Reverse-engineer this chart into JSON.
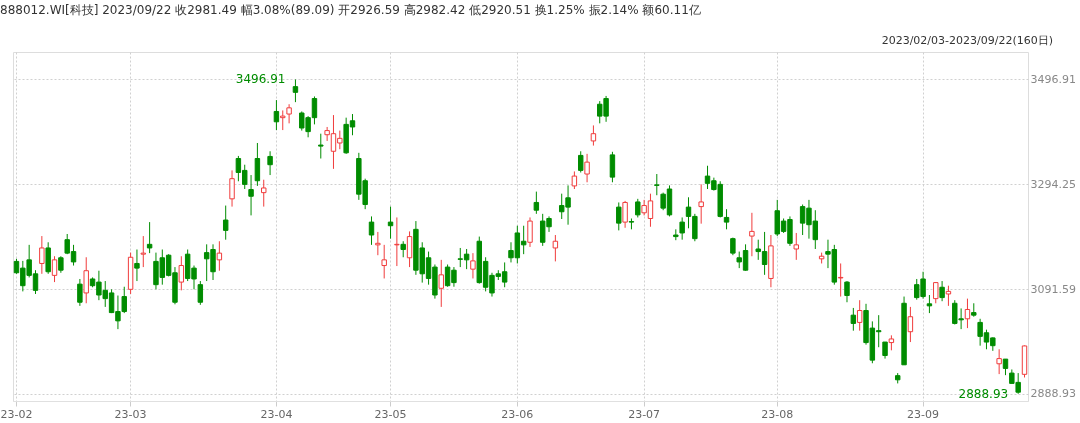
{
  "chart_data": {
    "type": "candlestick",
    "title": "888012.WI[科技]   2023/09/22   收2981.49   幅3.08%(89.09)   开2926.59   高2982.42   低2920.51   换1.25%   振2.14%   额60.11亿",
    "subtitle": "2023/02/03-2023/09/22(160日)",
    "categories": [
      "23-02",
      null,
      null,
      null,
      null,
      null,
      null,
      null,
      null,
      null,
      null,
      null,
      null,
      null,
      null,
      null,
      null,
      null,
      "23-03",
      null,
      null,
      null,
      null,
      null,
      null,
      null,
      null,
      null,
      null,
      null,
      null,
      null,
      null,
      null,
      null,
      null,
      null,
      null,
      null,
      null,
      null,
      "23-04",
      null,
      null,
      null,
      null,
      null,
      null,
      null,
      null,
      null,
      null,
      null,
      null,
      null,
      null,
      null,
      null,
      null,
      "23-05",
      null,
      null,
      null,
      null,
      null,
      null,
      null,
      null,
      null,
      null,
      null,
      null,
      null,
      null,
      null,
      null,
      null,
      null,
      null,
      "23-06",
      null,
      null,
      null,
      null,
      null,
      null,
      null,
      null,
      null,
      null,
      null,
      null,
      null,
      null,
      null,
      null,
      null,
      null,
      null,
      "23-07",
      null,
      null,
      null,
      null,
      null,
      null,
      null,
      null,
      null,
      null,
      null,
      null,
      null,
      null,
      null,
      null,
      null,
      null,
      null,
      null,
      "23-08",
      null,
      null,
      null,
      null,
      null,
      null,
      null,
      null,
      null,
      null,
      null,
      null,
      null,
      null,
      null,
      null,
      null,
      null,
      null,
      null,
      null,
      null,
      "23-09",
      null,
      null,
      null,
      null,
      null,
      null,
      null,
      null,
      null,
      null,
      null,
      null,
      null,
      null,
      null,
      null
    ],
    "ohlc": [
      [
        3145,
        3150,
        3121,
        3123
      ],
      [
        3132,
        3146,
        3087,
        3098
      ],
      [
        3148,
        3177,
        3114,
        3118
      ],
      [
        3121,
        3128,
        3082,
        3089
      ],
      [
        3141,
        3194,
        3121,
        3171
      ],
      [
        3171,
        3182,
        3121,
        3125
      ],
      [
        3118,
        3155,
        3105,
        3148
      ],
      [
        3152,
        3155,
        3123,
        3128
      ],
      [
        3187,
        3198,
        3159,
        3161
      ],
      [
        3164,
        3177,
        3137,
        3144
      ],
      [
        3101,
        3111,
        3059,
        3066
      ],
      [
        3084,
        3153,
        3064,
        3127
      ],
      [
        3111,
        3114,
        3095,
        3098
      ],
      [
        3105,
        3127,
        3070,
        3080
      ],
      [
        3089,
        3107,
        3057,
        3073
      ],
      [
        3084,
        3091,
        3045,
        3046
      ],
      [
        3048,
        3079,
        3014,
        3030
      ],
      [
        3077,
        3096,
        3045,
        3048
      ],
      [
        3091,
        3162,
        3082,
        3153
      ],
      [
        3141,
        3168,
        3107,
        3132
      ],
      [
        3159,
        3194,
        3134,
        3161
      ],
      [
        3178,
        3221,
        3161,
        3171
      ],
      [
        3145,
        3162,
        3091,
        3100
      ],
      [
        3152,
        3168,
        3100,
        3114
      ],
      [
        3157,
        3159,
        3116,
        3118
      ],
      [
        3123,
        3134,
        3062,
        3066
      ],
      [
        3105,
        3155,
        3089,
        3137
      ],
      [
        3159,
        3168,
        3107,
        3112
      ],
      [
        3132,
        3137,
        3091,
        3111
      ],
      [
        3100,
        3107,
        3061,
        3066
      ],
      [
        3162,
        3178,
        3107,
        3150
      ],
      [
        3168,
        3178,
        3109,
        3125
      ],
      [
        3148,
        3184,
        3127,
        3161
      ],
      [
        3225,
        3253,
        3187,
        3205
      ],
      [
        3266,
        3321,
        3251,
        3305
      ],
      [
        3344,
        3349,
        3300,
        3317
      ],
      [
        3321,
        3332,
        3285,
        3294
      ],
      [
        3284,
        3312,
        3234,
        3271
      ],
      [
        3344,
        3374,
        3291,
        3301
      ],
      [
        3278,
        3303,
        3251,
        3287
      ],
      [
        3348,
        3358,
        3312,
        3332
      ],
      [
        3435,
        3457,
        3399,
        3415
      ],
      [
        3423,
        3437,
        3399,
        3426
      ],
      [
        3430,
        3449,
        3412,
        3442
      ],
      [
        3483,
        3496.91,
        3453,
        3472
      ],
      [
        3432,
        3435,
        3398,
        3403
      ],
      [
        3423,
        3426,
        3385,
        3396
      ],
      [
        3460,
        3464,
        3410,
        3423
      ],
      [
        3370,
        3392,
        3344,
        3368
      ],
      [
        3390,
        3405,
        3378,
        3398
      ],
      [
        3358,
        3428,
        3324,
        3392
      ],
      [
        3374,
        3398,
        3362,
        3383
      ],
      [
        3410,
        3423,
        3353,
        3355
      ],
      [
        3417,
        3430,
        3389,
        3405
      ],
      [
        3344,
        3355,
        3264,
        3275
      ],
      [
        3301,
        3305,
        3246,
        3255
      ],
      [
        3221,
        3232,
        3177,
        3196
      ],
      [
        3177,
        3202,
        3157,
        3180
      ],
      [
        3137,
        3177,
        3112,
        3148
      ],
      [
        3221,
        3251,
        3189,
        3214
      ],
      [
        3177,
        3230,
        3136,
        3178
      ],
      [
        3178,
        3184,
        3153,
        3168
      ],
      [
        3152,
        3203,
        3134,
        3193
      ],
      [
        3207,
        3223,
        3119,
        3128
      ],
      [
        3171,
        3182,
        3104,
        3121
      ],
      [
        3152,
        3164,
        3100,
        3112
      ],
      [
        3134,
        3139,
        3073,
        3080
      ],
      [
        3093,
        3148,
        3057,
        3119
      ],
      [
        3134,
        3139,
        3096,
        3098
      ],
      [
        3128,
        3134,
        3096,
        3104
      ],
      [
        3150,
        3171,
        3134,
        3149
      ],
      [
        3159,
        3169,
        3130,
        3148
      ],
      [
        3130,
        3161,
        3112,
        3146
      ],
      [
        3184,
        3193,
        3102,
        3104
      ],
      [
        3145,
        3153,
        3087,
        3095
      ],
      [
        3118,
        3123,
        3077,
        3084
      ],
      [
        3121,
        3128,
        3109,
        3116
      ],
      [
        3125,
        3143,
        3095,
        3105
      ],
      [
        3166,
        3182,
        3143,
        3152
      ],
      [
        3200,
        3214,
        3141,
        3152
      ],
      [
        3184,
        3214,
        3159,
        3177
      ],
      [
        3182,
        3230,
        3173,
        3223
      ],
      [
        3259,
        3280,
        3237,
        3244
      ],
      [
        3223,
        3237,
        3175,
        3182
      ],
      [
        3228,
        3232,
        3202,
        3212
      ],
      [
        3171,
        3196,
        3145,
        3184
      ],
      [
        3253,
        3276,
        3227,
        3241
      ],
      [
        3268,
        3292,
        3216,
        3250
      ],
      [
        3291,
        3319,
        3285,
        3310
      ],
      [
        3350,
        3358,
        3317,
        3321
      ],
      [
        3314,
        3353,
        3298,
        3337
      ],
      [
        3378,
        3408,
        3369,
        3392
      ],
      [
        3449,
        3455,
        3412,
        3426
      ],
      [
        3460,
        3465,
        3415,
        3426
      ],
      [
        3351,
        3357,
        3298,
        3308
      ],
      [
        3250,
        3259,
        3205,
        3219
      ],
      [
        3221,
        3262,
        3210,
        3259
      ],
      [
        3222,
        3228,
        3207,
        3221
      ],
      [
        3260,
        3266,
        3230,
        3235
      ],
      [
        3239,
        3264,
        3234,
        3253
      ],
      [
        3228,
        3276,
        3212,
        3262
      ],
      [
        3293,
        3314,
        3273,
        3292
      ],
      [
        3275,
        3278,
        3244,
        3248
      ],
      [
        3285,
        3292,
        3232,
        3235
      ],
      [
        3196,
        3207,
        3186,
        3193
      ],
      [
        3221,
        3230,
        3187,
        3200
      ],
      [
        3250,
        3269,
        3209,
        3232
      ],
      [
        3232,
        3237,
        3184,
        3189
      ],
      [
        3251,
        3294,
        3218,
        3260
      ],
      [
        3310,
        3330,
        3285,
        3296
      ],
      [
        3301,
        3307,
        3282,
        3284
      ],
      [
        3294,
        3300,
        3230,
        3232
      ],
      [
        3230,
        3246,
        3207,
        3221
      ],
      [
        3189,
        3191,
        3157,
        3161
      ],
      [
        3152,
        3164,
        3132,
        3144
      ],
      [
        3166,
        3178,
        3127,
        3128
      ],
      [
        3194,
        3239,
        3155,
        3203
      ],
      [
        3169,
        3187,
        3148,
        3164
      ],
      [
        3164,
        3202,
        3119,
        3139
      ],
      [
        3112,
        3196,
        3095,
        3175
      ],
      [
        3243,
        3264,
        3194,
        3198
      ],
      [
        3223,
        3228,
        3200,
        3203
      ],
      [
        3226,
        3232,
        3175,
        3180
      ],
      [
        3169,
        3200,
        3148,
        3177
      ],
      [
        3251,
        3255,
        3196,
        3219
      ],
      [
        3248,
        3264,
        3189,
        3216
      ],
      [
        3223,
        3244,
        3169,
        3187
      ],
      [
        3150,
        3162,
        3141,
        3155
      ],
      [
        3164,
        3187,
        3132,
        3159
      ],
      [
        3168,
        3177,
        3100,
        3105
      ],
      [
        3113,
        3141,
        3077,
        3114
      ],
      [
        3105,
        3107,
        3066,
        3079
      ],
      [
        3041,
        3055,
        3011,
        3025
      ],
      [
        3027,
        3070,
        3011,
        3050
      ],
      [
        3050,
        3063,
        2984,
        2988
      ],
      [
        3016,
        3029,
        2948,
        2954
      ],
      [
        3011,
        3041,
        2979,
        3009
      ],
      [
        2989,
        2989,
        2957,
        2963
      ],
      [
        2988,
        3002,
        2973,
        2995
      ],
      [
        2924,
        2929,
        2909,
        2916
      ],
      [
        3064,
        3077,
        2945,
        2945
      ],
      [
        3009,
        3057,
        2989,
        3038
      ],
      [
        3100,
        3111,
        3071,
        3075
      ],
      [
        3111,
        3125,
        3073,
        3077
      ],
      [
        3063,
        3080,
        3045,
        3059
      ],
      [
        3073,
        3105,
        3064,
        3104
      ],
      [
        3095,
        3107,
        3068,
        3075
      ],
      [
        3082,
        3098,
        3059,
        3087
      ],
      [
        3064,
        3070,
        3023,
        3025
      ],
      [
        3034,
        3054,
        3014,
        3032
      ],
      [
        3034,
        3073,
        3016,
        3052
      ],
      [
        3046,
        3064,
        3038,
        3041
      ],
      [
        3027,
        3034,
        2982,
        3000
      ],
      [
        3007,
        3013,
        2975,
        2989
      ],
      [
        2997,
        2998,
        2972,
        2982
      ],
      [
        2947,
        2975,
        2927,
        2957
      ],
      [
        2956,
        2956,
        2925,
        2938
      ],
      [
        2929,
        2936,
        2909,
        2909
      ],
      [
        2911,
        2929,
        2888.93,
        2892
      ],
      [
        2926.59,
        2982.42,
        2920.51,
        2981.49
      ]
    ],
    "colors": [
      "#008c00",
      "#008c00",
      "#008c00",
      "#008c00",
      "#f03c3c",
      "#008c00",
      "#f03c3c",
      "#008c00",
      "#008c00",
      "#008c00",
      "#008c00",
      "#f03c3c",
      "#008c00",
      "#008c00",
      "#008c00",
      "#008c00",
      "#008c00",
      "#008c00",
      "#f03c3c",
      "#008c00",
      "#f03c3c",
      "#008c00",
      "#008c00",
      "#008c00",
      "#008c00",
      "#008c00",
      "#f03c3c",
      "#008c00",
      "#008c00",
      "#008c00",
      "#008c00",
      "#008c00",
      "#f03c3c",
      "#008c00",
      "#f03c3c",
      "#008c00",
      "#008c00",
      "#008c00",
      "#008c00",
      "#f03c3c",
      "#008c00",
      "#008c00",
      "#f03c3c",
      "#f03c3c",
      "#008c00",
      "#008c00",
      "#008c00",
      "#008c00",
      "#008c00",
      "#f03c3c",
      "#f03c3c",
      "#f03c3c",
      "#008c00",
      "#008c00",
      "#008c00",
      "#008c00",
      "#008c00",
      "#f03c3c",
      "#f03c3c",
      "#008c00",
      "#f03c3c",
      "#008c00",
      "#f03c3c",
      "#008c00",
      "#008c00",
      "#008c00",
      "#008c00",
      "#f03c3c",
      "#008c00",
      "#008c00",
      "#008c00",
      "#008c00",
      "#f03c3c",
      "#008c00",
      "#008c00",
      "#008c00",
      "#008c00",
      "#008c00",
      "#008c00",
      "#008c00",
      "#008c00",
      "#f03c3c",
      "#008c00",
      "#008c00",
      "#008c00",
      "#f03c3c",
      "#008c00",
      "#008c00",
      "#f03c3c",
      "#008c00",
      "#f03c3c",
      "#f03c3c",
      "#008c00",
      "#008c00",
      "#008c00",
      "#008c00",
      "#f03c3c",
      "#008c00",
      "#008c00",
      "#f03c3c",
      "#f03c3c",
      "#008c00",
      "#008c00",
      "#008c00",
      "#008c00",
      "#008c00",
      "#008c00",
      "#008c00",
      "#f03c3c",
      "#008c00",
      "#008c00",
      "#008c00",
      "#008c00",
      "#008c00",
      "#008c00",
      "#008c00",
      "#f03c3c",
      "#008c00",
      "#008c00",
      "#f03c3c",
      "#008c00",
      "#008c00",
      "#008c00",
      "#f03c3c",
      "#008c00",
      "#008c00",
      "#008c00",
      "#f03c3c",
      "#008c00",
      "#008c00",
      "#f03c3c",
      "#008c00",
      "#008c00",
      "#f03c3c",
      "#008c00",
      "#008c00",
      "#008c00",
      "#008c00",
      "#f03c3c",
      "#008c00",
      "#008c00",
      "#f03c3c",
      "#008c00",
      "#008c00",
      "#008c00",
      "#f03c3c",
      "#008c00",
      "#f03c3c",
      "#008c00",
      "#008c00",
      "#f03c3c",
      "#008c00",
      "#008c00",
      "#008c00",
      "#008c00",
      "#f03c3c",
      "#008c00",
      "#008c00",
      "#008c00",
      "#f03c3c"
    ],
    "ylim": [
      2875,
      3550
    ],
    "yticks": [
      2888.93,
      3091.59,
      3294.25,
      3496.91
    ],
    "grid": true,
    "annotations": [
      "3496.91",
      "2888.93"
    ]
  }
}
